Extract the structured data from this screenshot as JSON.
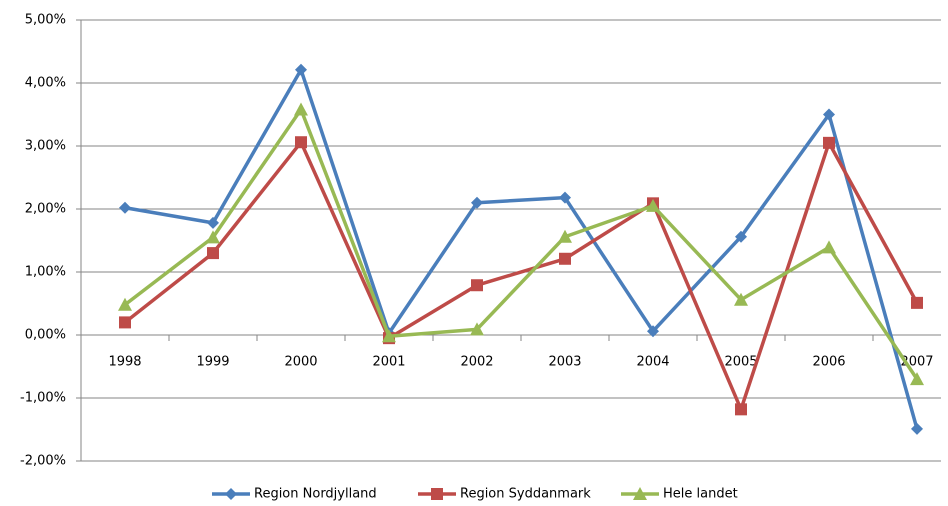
{
  "chart_data": {
    "type": "line",
    "categories": [
      "1998",
      "1999",
      "2000",
      "2001",
      "2002",
      "2003",
      "2004",
      "2005",
      "2006",
      "2007"
    ],
    "series": [
      {
        "name": "Region Nordjylland",
        "color": "#4a7ebb",
        "marker": "diamond",
        "values": [
          2.02,
          1.78,
          4.21,
          0.03,
          2.1,
          2.18,
          0.06,
          1.56,
          3.5,
          -1.49
        ]
      },
      {
        "name": "Region Syddanmark",
        "color": "#be4b48",
        "marker": "square",
        "values": [
          0.2,
          1.3,
          3.06,
          -0.05,
          0.79,
          1.21,
          2.09,
          -1.18,
          3.05,
          0.51
        ]
      },
      {
        "name": "Hele landet",
        "color": "#98b954",
        "marker": "triangle",
        "values": [
          0.48,
          1.55,
          3.58,
          -0.02,
          0.09,
          1.56,
          2.05,
          0.56,
          1.39,
          -0.7
        ]
      }
    ],
    "ylim": [
      -2,
      5
    ],
    "yticks": [
      {
        "value": -2,
        "label": "-2,00%"
      },
      {
        "value": -1,
        "label": "-1,00%"
      },
      {
        "value": 0,
        "label": "0,00%"
      },
      {
        "value": 1,
        "label": "1,00%"
      },
      {
        "value": 2,
        "label": "2,00%"
      },
      {
        "value": 3,
        "label": "3,00%"
      },
      {
        "value": 4,
        "label": "4,00%"
      },
      {
        "value": 5,
        "label": "5,00%"
      }
    ],
    "grid": true,
    "legend": "bottom"
  }
}
